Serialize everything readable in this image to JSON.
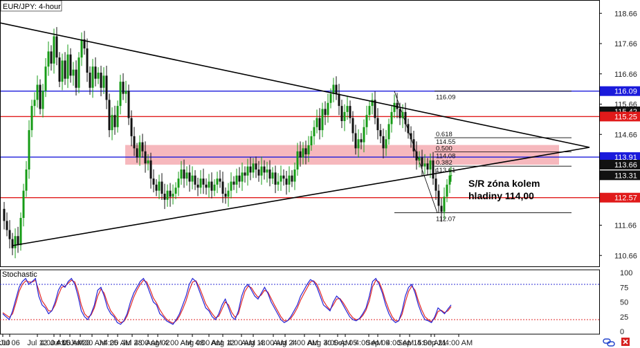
{
  "chart_data": {
    "type": "candlestick",
    "title": "EUR/JPY: 4-hour",
    "price_axis": {
      "min": 110.3,
      "max": 119.1,
      "ticks": [
        "118.66",
        "117.66",
        "116.66",
        "115.66",
        "114.66",
        "113.66",
        "111.66",
        "110.66"
      ]
    },
    "time_labels": [
      "8:00",
      "Jul 06",
      "Jul 12",
      "4:00 AM",
      "Jul 15",
      "4:00 AM",
      "Jul 20",
      "4:00 AM",
      "Jul 25",
      "4:00 AM",
      "Jul 28",
      "4:00 AM",
      "Aug 02",
      "4:00 AM",
      "Aug 08",
      "4:00 AM",
      "Aug 12",
      "4:00 AM",
      "Aug 18",
      "4:00 AM",
      "Aug 24",
      "4:00 AM",
      "Aug 30",
      "4:00 AM",
      "Sep 05",
      "4:00 AM",
      "Sep 09",
      "4:00 AM",
      "Sep 15",
      "4:00 AM",
      "Sep 21",
      "4:00 AM"
    ],
    "price_tags": [
      {
        "value": 116.09,
        "label": "116.09",
        "color": "#1a1adb"
      },
      {
        "value": 115.42,
        "label": "115.42",
        "color": "#111111"
      },
      {
        "value": 115.25,
        "label": "115.25",
        "color": "#e01a1a"
      },
      {
        "value": 113.91,
        "label": "113.91",
        "color": "#1a1adb"
      },
      {
        "value": 113.66,
        "label": "113.66",
        "color": "#111111"
      },
      {
        "value": 113.31,
        "label": "113.31",
        "color": "#111111"
      },
      {
        "value": 112.57,
        "label": "112.57",
        "color": "#e01a1a"
      }
    ],
    "horizontal_lines": [
      {
        "value": 116.09,
        "color": "#1a1adb"
      },
      {
        "value": 115.25,
        "color": "#e01a1a"
      },
      {
        "value": 113.91,
        "color": "#1a1adb"
      },
      {
        "value": 112.57,
        "color": "#e01a1a"
      }
    ],
    "sr_zone": {
      "low": 113.66,
      "high": 114.31,
      "color": "#f4a6ad"
    },
    "fibonacci": {
      "levels": [
        {
          "ratio": "0.618",
          "price": "114.55",
          "value": 114.55
        },
        {
          "ratio": "0.500",
          "price": "114.08",
          "value": 114.08
        },
        {
          "ratio": "0.382",
          "price": "113.61",
          "value": 113.61
        }
      ],
      "high_label": "116.09",
      "high_value": 116.09,
      "low_label": "112.07",
      "low_value": 112.07
    },
    "annotation": [
      "S/R zóna kolem",
      "hladiny 114,00"
    ],
    "ohlc_close_path": [
      [
        0,
        112.2
      ],
      [
        4,
        111.8
      ],
      [
        8,
        111.5
      ],
      [
        12,
        111.2
      ],
      [
        16,
        110.9
      ],
      [
        20,
        111.3
      ],
      [
        24,
        111.0
      ],
      [
        28,
        111.9
      ],
      [
        32,
        112.8
      ],
      [
        36,
        113.5
      ],
      [
        40,
        114.8
      ],
      [
        44,
        115.6
      ],
      [
        48,
        115.8
      ],
      [
        52,
        116.3
      ],
      [
        56,
        115.5
      ],
      [
        60,
        116.1
      ],
      [
        64,
        116.9
      ],
      [
        68,
        117.4
      ],
      [
        72,
        117.0
      ],
      [
        76,
        117.9
      ],
      [
        80,
        117.2
      ],
      [
        84,
        116.4
      ],
      [
        88,
        117.1
      ],
      [
        92,
        116.5
      ],
      [
        96,
        117.3
      ],
      [
        100,
        116.6
      ],
      [
        104,
        116.8
      ],
      [
        108,
        116.2
      ],
      [
        112,
        117.2
      ],
      [
        116,
        117.8
      ],
      [
        120,
        117.5
      ],
      [
        124,
        116.7
      ],
      [
        128,
        116.2
      ],
      [
        132,
        116.9
      ],
      [
        136,
        116.5
      ],
      [
        140,
        116.7
      ],
      [
        144,
        116.2
      ],
      [
        148,
        116.6
      ],
      [
        152,
        115.8
      ],
      [
        156,
        114.8
      ],
      [
        160,
        115.3
      ],
      [
        164,
        114.9
      ],
      [
        168,
        115.6
      ],
      [
        172,
        116.4
      ],
      [
        176,
        116.0
      ],
      [
        180,
        116.1
      ],
      [
        184,
        115.2
      ],
      [
        188,
        114.6
      ],
      [
        192,
        114.2
      ],
      [
        196,
        113.9
      ],
      [
        200,
        114.4
      ],
      [
        204,
        114.1
      ],
      [
        208,
        113.7
      ],
      [
        212,
        113.8
      ],
      [
        216,
        113.2
      ],
      [
        220,
        113.0
      ],
      [
        224,
        112.8
      ],
      [
        228,
        113.1
      ],
      [
        232,
        112.7
      ],
      [
        236,
        112.5
      ],
      [
        240,
        112.8
      ],
      [
        244,
        112.6
      ],
      [
        248,
        112.7
      ],
      [
        252,
        112.9
      ],
      [
        256,
        113.2
      ],
      [
        260,
        113.5
      ],
      [
        264,
        113.2
      ],
      [
        268,
        113.4
      ],
      [
        272,
        113.1
      ],
      [
        276,
        113.3
      ],
      [
        280,
        113.0
      ],
      [
        284,
        112.9
      ],
      [
        288,
        113.2
      ],
      [
        292,
        113.0
      ],
      [
        296,
        112.9
      ],
      [
        300,
        113.1
      ],
      [
        304,
        112.8
      ],
      [
        308,
        113.0
      ],
      [
        312,
        113.2
      ],
      [
        316,
        113.1
      ],
      [
        320,
        112.7
      ],
      [
        324,
        112.6
      ],
      [
        328,
        112.8
      ],
      [
        332,
        113.1
      ],
      [
        336,
        113.0
      ],
      [
        340,
        113.3
      ],
      [
        344,
        113.1
      ],
      [
        348,
        113.4
      ],
      [
        352,
        113.3
      ],
      [
        356,
        113.6
      ],
      [
        360,
        113.4
      ],
      [
        364,
        113.7
      ],
      [
        368,
        113.5
      ],
      [
        372,
        113.3
      ],
      [
        376,
        113.6
      ],
      [
        380,
        113.4
      ],
      [
        384,
        113.5
      ],
      [
        388,
        113.2
      ],
      [
        392,
        113.4
      ],
      [
        396,
        113.0
      ],
      [
        400,
        113.1
      ],
      [
        404,
        113.3
      ],
      [
        408,
        113.2
      ],
      [
        412,
        113.0
      ],
      [
        416,
        113.3
      ],
      [
        420,
        113.1
      ],
      [
        424,
        113.5
      ],
      [
        428,
        114.1
      ],
      [
        432,
        113.9
      ],
      [
        436,
        114.2
      ],
      [
        440,
        114.0
      ],
      [
        444,
        114.3
      ],
      [
        448,
        114.6
      ],
      [
        452,
        114.9
      ],
      [
        456,
        115.2
      ],
      [
        460,
        114.8
      ],
      [
        464,
        115.5
      ],
      [
        468,
        115.3
      ],
      [
        472,
        115.7
      ],
      [
        476,
        116.0
      ],
      [
        480,
        116.3
      ],
      [
        484,
        116.0
      ],
      [
        488,
        115.6
      ],
      [
        492,
        115.1
      ],
      [
        496,
        115.4
      ],
      [
        500,
        115.6
      ],
      [
        504,
        115.2
      ],
      [
        508,
        114.7
      ],
      [
        512,
        114.2
      ],
      [
        516,
        114.5
      ],
      [
        520,
        114.4
      ],
      [
        524,
        114.9
      ],
      [
        528,
        115.3
      ],
      [
        532,
        115.6
      ],
      [
        536,
        115.8
      ],
      [
        540,
        115.2
      ],
      [
        544,
        114.8
      ],
      [
        548,
        114.6
      ],
      [
        552,
        114.2
      ],
      [
        556,
        114.5
      ],
      [
        560,
        115.0
      ],
      [
        564,
        115.4
      ],
      [
        568,
        115.7
      ],
      [
        572,
        115.5
      ],
      [
        576,
        115.2
      ],
      [
        580,
        115.4
      ],
      [
        584,
        115.0
      ],
      [
        588,
        114.7
      ],
      [
        592,
        114.5
      ],
      [
        596,
        114.1
      ],
      [
        600,
        113.8
      ],
      [
        604,
        113.9
      ],
      [
        608,
        113.6
      ],
      [
        612,
        113.7
      ],
      [
        616,
        113.5
      ],
      [
        620,
        113.8
      ],
      [
        624,
        113.2
      ],
      [
        628,
        112.8
      ],
      [
        632,
        112.3
      ],
      [
        636,
        112.1
      ],
      [
        640,
        112.6
      ],
      [
        644,
        113.0
      ],
      [
        648,
        113.3
      ],
      [
        650,
        113.31
      ]
    ],
    "stochastic": {
      "label": "Stochastic",
      "ticks": [
        "100",
        "75",
        "50",
        "25",
        "0"
      ],
      "levels": [
        80,
        20
      ],
      "k_series": [
        30,
        25,
        20,
        35,
        55,
        75,
        85,
        90,
        80,
        85,
        90,
        60,
        45,
        40,
        30,
        35,
        50,
        70,
        80,
        75,
        85,
        90,
        80,
        60,
        35,
        25,
        20,
        30,
        45,
        70,
        75,
        60,
        40,
        30,
        25,
        15,
        12,
        18,
        30,
        50,
        65,
        75,
        85,
        90,
        80,
        65,
        50,
        45,
        30,
        25,
        18,
        15,
        12,
        20,
        30,
        45,
        60,
        80,
        90,
        85,
        70,
        55,
        40,
        35,
        25,
        20,
        30,
        45,
        55,
        40,
        25,
        20,
        35,
        60,
        75,
        80,
        70,
        60,
        55,
        65,
        75,
        65,
        50,
        40,
        30,
        20,
        15,
        18,
        25,
        35,
        45,
        60,
        70,
        80,
        88,
        85,
        75,
        60,
        45,
        40,
        35,
        50,
        60,
        55,
        45,
        35,
        25,
        20,
        18,
        22,
        30,
        40,
        60,
        85,
        90,
        80,
        65,
        45,
        30,
        20,
        15,
        18,
        35,
        60,
        75,
        80,
        65,
        45,
        30,
        20,
        18,
        15,
        25,
        40,
        35,
        30,
        38,
        45
      ],
      "d_series": [
        32,
        28,
        24,
        30,
        48,
        68,
        80,
        86,
        84,
        84,
        87,
        70,
        52,
        44,
        35,
        35,
        45,
        62,
        75,
        77,
        82,
        87,
        84,
        68,
        45,
        30,
        24,
        28,
        40,
        60,
        72,
        65,
        48,
        35,
        28,
        20,
        15,
        17,
        26,
        42,
        58,
        70,
        80,
        87,
        84,
        72,
        57,
        48,
        37,
        28,
        21,
        17,
        14,
        18,
        26,
        38,
        52,
        70,
        84,
        86,
        76,
        62,
        47,
        38,
        30,
        23,
        26,
        38,
        50,
        45,
        32,
        24,
        30,
        50,
        68,
        77,
        74,
        65,
        58,
        62,
        70,
        67,
        56,
        45,
        35,
        25,
        18,
        18,
        22,
        30,
        40,
        53,
        64,
        74,
        84,
        86,
        80,
        67,
        52,
        43,
        37,
        45,
        55,
        56,
        49,
        40,
        30,
        23,
        20,
        21,
        27,
        36,
        52,
        76,
        87,
        84,
        70,
        52,
        37,
        25,
        18,
        18,
        29,
        50,
        68,
        77,
        70,
        52,
        37,
        25,
        20,
        17,
        22,
        34,
        36,
        32,
        35,
        42
      ]
    }
  },
  "colors": {
    "candle_up": "#159b15",
    "candle_down": "#111111",
    "trend": "#000000",
    "stoch_k": "#2323d6",
    "stoch_d": "#e02828",
    "level_dotted": "#2b2bd6",
    "level_dotted_low": "#e02828"
  },
  "icons": [
    "chain-link-icon",
    "close-icon"
  ]
}
